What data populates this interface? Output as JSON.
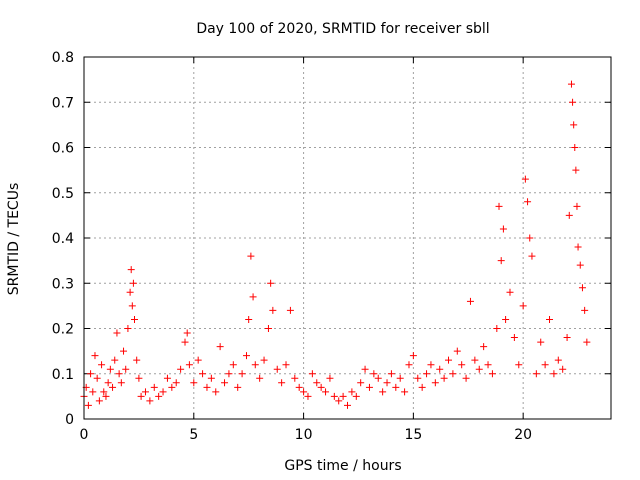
{
  "chart_data": {
    "type": "scatter",
    "title": "Day 100 of 2020, SRMTID for receiver sbll",
    "xlabel": "GPS time / hours",
    "ylabel": "SRMTID / TECUs",
    "xlim": [
      0,
      24
    ],
    "ylim": [
      0,
      0.8
    ],
    "xticks": [
      0,
      5,
      10,
      15,
      20
    ],
    "yticks": [
      0,
      0.1,
      0.2,
      0.3,
      0.4,
      0.5,
      0.6,
      0.7,
      0.8
    ],
    "xtick_labels": [
      "0",
      "5",
      "10",
      "15",
      "20"
    ],
    "ytick_labels": [
      "0",
      "0.1",
      "0.2",
      "0.3",
      "0.4",
      "0.5",
      "0.6",
      "0.7",
      "0.8"
    ],
    "grid": true,
    "marker": "+",
    "series": [
      {
        "name": "SRMTID",
        "color": "#ff0000",
        "x": [
          0.0,
          0.1,
          0.2,
          0.3,
          0.4,
          0.5,
          0.6,
          0.7,
          0.8,
          0.9,
          1.0,
          1.1,
          1.2,
          1.3,
          1.4,
          1.5,
          1.6,
          1.7,
          1.8,
          1.9,
          2.0,
          2.1,
          2.15,
          2.2,
          2.25,
          2.3,
          2.4,
          2.5,
          2.6,
          2.8,
          3.0,
          3.2,
          3.4,
          3.6,
          3.8,
          4.0,
          4.2,
          4.4,
          4.6,
          4.7,
          4.8,
          5.0,
          5.2,
          5.4,
          5.6,
          5.8,
          6.0,
          6.2,
          6.4,
          6.6,
          6.8,
          7.0,
          7.2,
          7.4,
          7.5,
          7.6,
          7.7,
          7.8,
          8.0,
          8.2,
          8.4,
          8.5,
          8.6,
          8.8,
          9.0,
          9.2,
          9.4,
          9.6,
          9.8,
          10.0,
          10.2,
          10.4,
          10.6,
          10.8,
          11.0,
          11.2,
          11.4,
          11.6,
          11.8,
          12.0,
          12.2,
          12.4,
          12.6,
          12.8,
          13.0,
          13.2,
          13.4,
          13.6,
          13.8,
          14.0,
          14.2,
          14.4,
          14.6,
          14.8,
          15.0,
          15.2,
          15.4,
          15.6,
          15.8,
          16.0,
          16.2,
          16.4,
          16.6,
          16.8,
          17.0,
          17.2,
          17.4,
          17.6,
          17.8,
          18.0,
          18.2,
          18.4,
          18.6,
          18.8,
          18.9,
          19.0,
          19.1,
          19.2,
          19.4,
          19.6,
          19.8,
          20.0,
          20.1,
          20.2,
          20.3,
          20.4,
          20.6,
          20.8,
          21.0,
          21.2,
          21.4,
          21.6,
          21.8,
          22.0,
          22.1,
          22.2,
          22.25,
          22.3,
          22.35,
          22.4,
          22.45,
          22.5,
          22.6,
          22.7,
          22.8,
          22.9
        ],
        "y": [
          0.05,
          0.07,
          0.03,
          0.1,
          0.06,
          0.14,
          0.09,
          0.04,
          0.12,
          0.06,
          0.05,
          0.08,
          0.11,
          0.07,
          0.13,
          0.19,
          0.1,
          0.08,
          0.15,
          0.11,
          0.2,
          0.28,
          0.33,
          0.25,
          0.3,
          0.22,
          0.13,
          0.09,
          0.05,
          0.06,
          0.04,
          0.07,
          0.05,
          0.06,
          0.09,
          0.07,
          0.08,
          0.11,
          0.17,
          0.19,
          0.12,
          0.08,
          0.13,
          0.1,
          0.07,
          0.09,
          0.06,
          0.16,
          0.08,
          0.1,
          0.12,
          0.07,
          0.1,
          0.14,
          0.22,
          0.36,
          0.27,
          0.12,
          0.09,
          0.13,
          0.2,
          0.3,
          0.24,
          0.11,
          0.08,
          0.12,
          0.24,
          0.09,
          0.07,
          0.06,
          0.05,
          0.1,
          0.08,
          0.07,
          0.06,
          0.09,
          0.05,
          0.04,
          0.05,
          0.03,
          0.06,
          0.05,
          0.08,
          0.11,
          0.07,
          0.1,
          0.09,
          0.06,
          0.08,
          0.1,
          0.07,
          0.09,
          0.06,
          0.12,
          0.14,
          0.09,
          0.07,
          0.1,
          0.12,
          0.08,
          0.11,
          0.09,
          0.13,
          0.1,
          0.15,
          0.12,
          0.09,
          0.26,
          0.13,
          0.11,
          0.16,
          0.12,
          0.1,
          0.2,
          0.47,
          0.35,
          0.42,
          0.22,
          0.28,
          0.18,
          0.12,
          0.25,
          0.53,
          0.48,
          0.4,
          0.36,
          0.1,
          0.17,
          0.12,
          0.22,
          0.1,
          0.13,
          0.11,
          0.18,
          0.45,
          0.74,
          0.7,
          0.65,
          0.6,
          0.55,
          0.47,
          0.38,
          0.34,
          0.29,
          0.24,
          0.17
        ]
      }
    ]
  }
}
